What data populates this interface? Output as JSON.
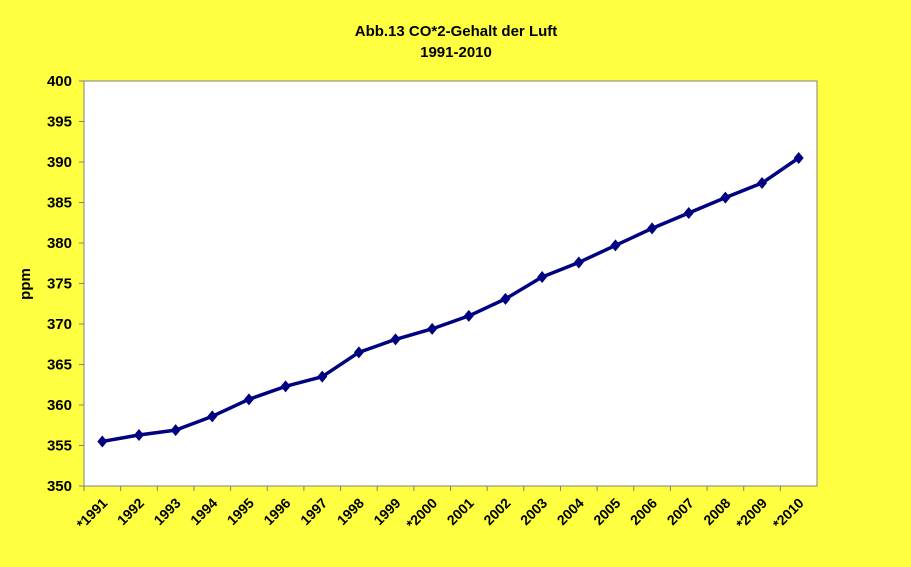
{
  "chart_data": {
    "type": "line",
    "title": "Abb.13 CO*2-Gehalt der Luft",
    "subtitle": "1991-2010",
    "xlabel": "",
    "ylabel": "ppm",
    "ylim": [
      350,
      400
    ],
    "yticks": [
      350,
      355,
      360,
      365,
      370,
      375,
      380,
      385,
      390,
      395,
      400
    ],
    "categories": [
      "*1991",
      "1992",
      "1993",
      "1994",
      "1995",
      "1996",
      "1997",
      "1998",
      "1999",
      "*2000",
      "2001",
      "2002",
      "2003",
      "2004",
      "2005",
      "2006",
      "2007",
      "2008",
      "*2009",
      "*2010"
    ],
    "series": [
      {
        "name": "CO2",
        "color": "#000080",
        "values": [
          355.5,
          356.3,
          356.9,
          358.6,
          360.7,
          362.3,
          363.5,
          366.5,
          368.1,
          369.4,
          371.0,
          373.1,
          375.8,
          377.6,
          379.7,
          381.8,
          383.7,
          385.6,
          387.4,
          390.5
        ]
      }
    ],
    "grid": false,
    "background": "#ffff42"
  }
}
